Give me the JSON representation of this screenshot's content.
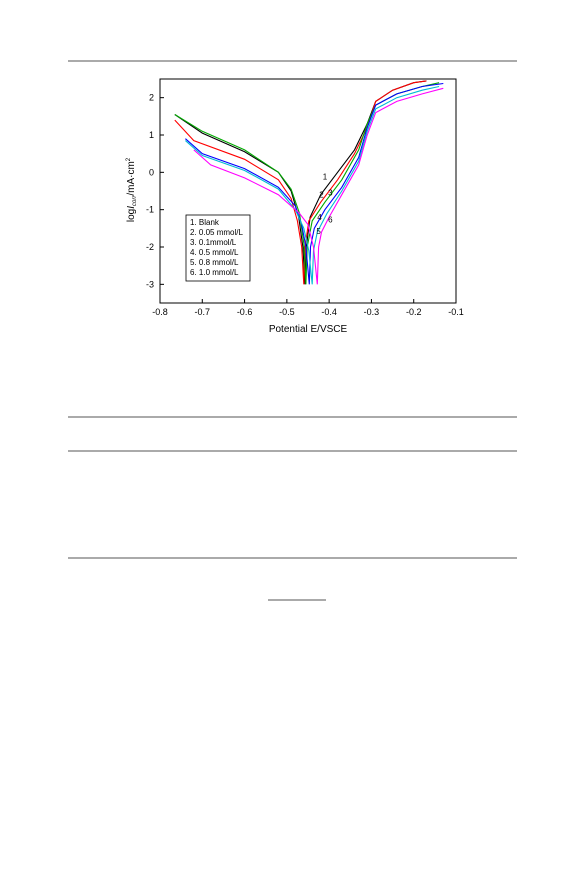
{
  "chart_data": {
    "type": "line",
    "x_label": "Potential E/VSCE",
    "y_label": [
      "log",
      "I",
      "corr",
      "/mA·cm",
      "2"
    ],
    "xlim": [
      -0.8,
      -0.1
    ],
    "xticks": [
      -0.8,
      -0.7,
      -0.6,
      -0.5,
      -0.4,
      -0.3,
      -0.2,
      -0.1
    ],
    "ylim": [
      -3.5,
      2.5
    ],
    "yticks": [
      2,
      1,
      0,
      -1,
      -2,
      -3
    ],
    "legend": "lower left",
    "series": [
      {
        "name": "1. Blank",
        "color": "#000000",
        "x": [
          -0.765,
          -0.7,
          -0.6,
          -0.52,
          -0.49,
          -0.472,
          -0.462,
          -0.457,
          -0.454,
          -0.445,
          -0.42,
          -0.38,
          -0.34,
          -0.31,
          -0.29,
          -0.25,
          -0.2,
          -0.17
        ],
        "values": [
          1.55,
          1.05,
          0.55,
          0.0,
          -0.5,
          -1.2,
          -2.0,
          -3.0,
          -2.0,
          -1.2,
          -0.6,
          0.0,
          0.6,
          1.3,
          1.9,
          2.2,
          2.4,
          2.45
        ]
      },
      {
        "name": "2. 0.05 mmol/L",
        "color": "#ff0000",
        "x": [
          -0.765,
          -0.72,
          -0.6,
          -0.52,
          -0.49,
          -0.475,
          -0.465,
          -0.46,
          -0.457,
          -0.448,
          -0.42,
          -0.38,
          -0.34,
          -0.31,
          -0.29,
          -0.25,
          -0.2,
          -0.17
        ],
        "values": [
          1.4,
          0.85,
          0.35,
          -0.2,
          -0.7,
          -1.3,
          -2.0,
          -3.0,
          -2.0,
          -1.3,
          -0.8,
          -0.2,
          0.5,
          1.2,
          1.9,
          2.2,
          2.4,
          2.45
        ]
      },
      {
        "name": "3. 0.1mmol/L",
        "color": "#00aa00",
        "x": [
          -0.765,
          -0.7,
          -0.6,
          -0.52,
          -0.49,
          -0.47,
          -0.46,
          -0.455,
          -0.452,
          -0.44,
          -0.41,
          -0.37,
          -0.33,
          -0.31,
          -0.29,
          -0.24,
          -0.18,
          -0.14
        ],
        "values": [
          1.55,
          1.1,
          0.6,
          0.0,
          -0.45,
          -1.1,
          -1.9,
          -3.0,
          -2.0,
          -1.3,
          -0.8,
          -0.2,
          0.6,
          1.3,
          1.8,
          2.1,
          2.3,
          2.4
        ]
      },
      {
        "name": "4. 0.5 mmol/L",
        "color": "#0000ff",
        "x": [
          -0.74,
          -0.7,
          -0.6,
          -0.52,
          -0.48,
          -0.465,
          -0.455,
          -0.447,
          -0.444,
          -0.435,
          -0.41,
          -0.37,
          -0.33,
          -0.31,
          -0.29,
          -0.24,
          -0.18,
          -0.13
        ],
        "values": [
          0.9,
          0.5,
          0.1,
          -0.4,
          -0.9,
          -1.4,
          -2.0,
          -3.0,
          -2.0,
          -1.5,
          -1.0,
          -0.4,
          0.4,
          1.2,
          1.8,
          2.1,
          2.3,
          2.38
        ]
      },
      {
        "name": "5. 0.8 mmol/L",
        "color": "#00bcd4",
        "x": [
          -0.74,
          -0.7,
          -0.6,
          -0.52,
          -0.48,
          -0.46,
          -0.448,
          -0.44,
          -0.437,
          -0.428,
          -0.405,
          -0.37,
          -0.33,
          -0.31,
          -0.29,
          -0.24,
          -0.18,
          -0.14
        ],
        "values": [
          0.85,
          0.45,
          0.05,
          -0.45,
          -1.0,
          -1.5,
          -2.1,
          -3.0,
          -2.1,
          -1.6,
          -1.1,
          -0.5,
          0.3,
          1.1,
          1.7,
          2.0,
          2.2,
          2.3
        ]
      },
      {
        "name": "6. 1.0 mmol/L",
        "color": "#ff00ff",
        "x": [
          -0.72,
          -0.68,
          -0.6,
          -0.52,
          -0.47,
          -0.45,
          -0.437,
          -0.428,
          -0.425,
          -0.418,
          -0.4,
          -0.37,
          -0.33,
          -0.31,
          -0.29,
          -0.24,
          -0.18,
          -0.13
        ],
        "values": [
          0.6,
          0.2,
          -0.15,
          -0.6,
          -1.1,
          -1.4,
          -2.0,
          -3.0,
          -2.0,
          -1.6,
          -1.2,
          -0.6,
          0.2,
          1.0,
          1.6,
          1.9,
          2.1,
          2.25
        ]
      }
    ],
    "annotations": [
      {
        "text": "1",
        "x": -0.41,
        "y": -0.11
      },
      {
        "text": "2",
        "x": -0.418,
        "y": -0.59
      },
      {
        "text": "3",
        "x": -0.397,
        "y": -0.54
      },
      {
        "text": "4",
        "x": -0.423,
        "y": -1.19
      },
      {
        "text": "5",
        "x": -0.425,
        "y": -1.57
      },
      {
        "text": "6",
        "x": -0.397,
        "y": -1.27
      }
    ]
  }
}
